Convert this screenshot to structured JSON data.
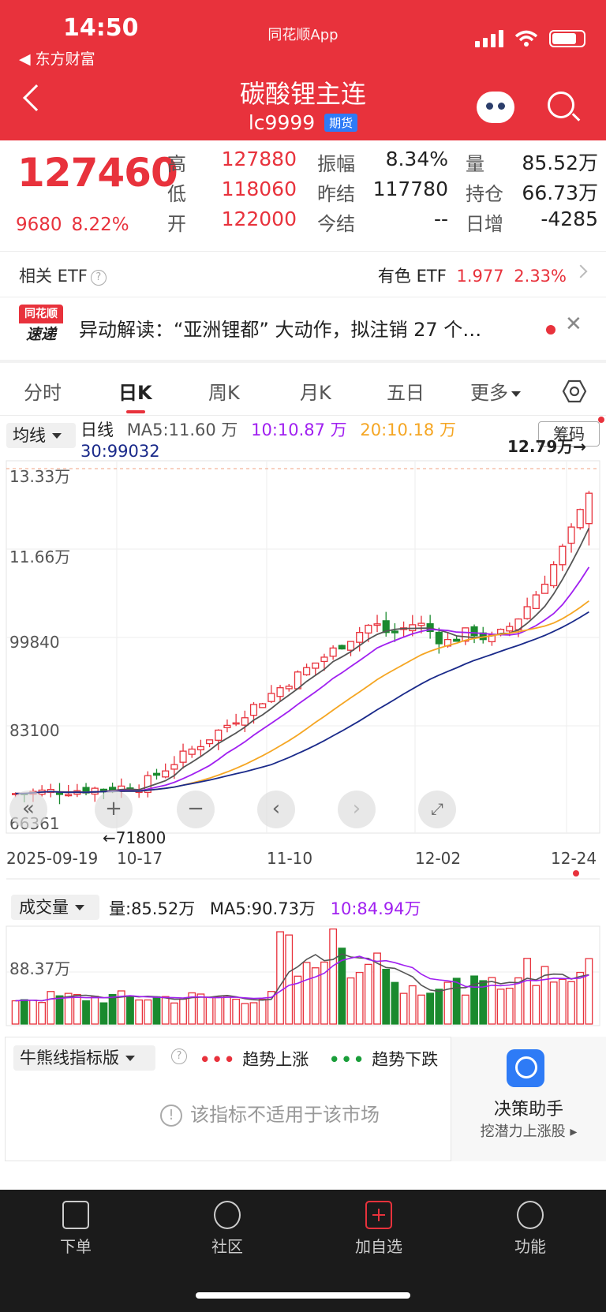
{
  "status_bar": {
    "time": "14:50",
    "back_app": "◀ 东方财富",
    "center_app": "同花顺App"
  },
  "header": {
    "title": "碳酸锂主连",
    "code": "lc9999",
    "tag": "期货"
  },
  "quote": {
    "price": "127460",
    "change": "9680",
    "change_pct": "8.22%",
    "fields": [
      {
        "label": "高",
        "value": "127880",
        "color": "#e8323c"
      },
      {
        "label": "低",
        "value": "118060",
        "color": "#e8323c"
      },
      {
        "label": "开",
        "value": "122000",
        "color": "#e8323c"
      },
      {
        "label": "振幅",
        "value": "8.34%",
        "color": "#222222"
      },
      {
        "label": "昨结",
        "value": "117780",
        "color": "#222222"
      },
      {
        "label": "今结",
        "value": "--",
        "color": "#222222"
      },
      {
        "label": "量",
        "value": "85.52万",
        "color": "#222222"
      },
      {
        "label": "持仓",
        "value": "66.73万",
        "color": "#222222"
      },
      {
        "label": "日增",
        "value": "-4285",
        "color": "#222222"
      }
    ]
  },
  "etf": {
    "label": "相关 ETF",
    "name": "有色 ETF",
    "price": "1.977",
    "pct": "2.33%"
  },
  "news": {
    "logo_top": "同花顺",
    "logo_bottom": "速递",
    "text": "异动解读：“亚洲锂都” 大动作，拟注销 27 个…"
  },
  "tabs": [
    "分时",
    "日K",
    "周K",
    "月K",
    "五日",
    "更多"
  ],
  "active_tab": "日K",
  "kline": {
    "ma_select": "均线",
    "legend": {
      "period": "日线",
      "ma5": "MA5:11.60 万",
      "ma10": "10:10.87 万",
      "ma20": "20:10.18 万",
      "ma30": "30:99032"
    },
    "chip_button": "筹码",
    "y_labels": [
      "13.33万",
      "11.66万",
      "99840",
      "83100",
      "66361"
    ],
    "high_label": "12.79万→",
    "low_label": "←71800",
    "x_labels": [
      "2025-09-19",
      "10-17",
      "11-10",
      "12-02",
      "12-24"
    ],
    "colors": {
      "up": "#e8323c",
      "down": "#1a8a2e",
      "ma5": "#555555",
      "ma10": "#a020f0",
      "ma20": "#f5a623",
      "ma30": "#1a2a8a"
    }
  },
  "chart_data": {
    "type": "candlestick",
    "ylim": [
      66361,
      133300
    ],
    "last_close": 127460,
    "last_high": 127880,
    "period_low": 71800,
    "ma_last": {
      "ma5": 116000,
      "ma10": 108700,
      "ma20": 101800,
      "ma30": 99032
    },
    "volume": {
      "last": "85.52万",
      "ma5": "90.73万",
      "ma10": "84.94万",
      "ymark": "88.37万"
    }
  },
  "volume": {
    "select": "成交量",
    "vol_label": "量:85.52万",
    "ma5_label": "MA5:90.73万",
    "ma10_label": "10:84.94万",
    "ymark": "88.37万"
  },
  "indicator": {
    "select": "牛熊线指标版",
    "up_text": "趋势上涨",
    "down_text": "趋势下跌",
    "message": "该指标不适用于该市场"
  },
  "decision": {
    "title": "决策助手",
    "subtitle": "挖潜力上涨股 ▸"
  },
  "bottom_nav": [
    "下单",
    "社区",
    "加自选",
    "功能"
  ]
}
